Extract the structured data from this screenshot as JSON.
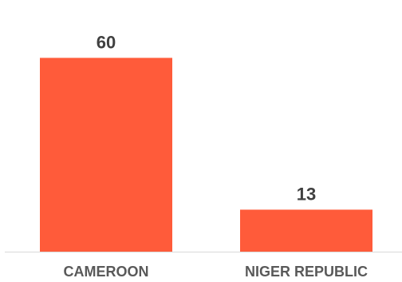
{
  "chart_data": {
    "type": "bar",
    "categories": [
      "CAMEROON",
      "NIGER REPUBLIC"
    ],
    "values": [
      60,
      13
    ],
    "title": "",
    "xlabel": "",
    "ylabel": "",
    "ylim": [
      0,
      70
    ],
    "grid": false,
    "legend": "none",
    "data_labels": true,
    "bar_color": "#FF5B3A",
    "axis_color": "#D9D9D9"
  }
}
